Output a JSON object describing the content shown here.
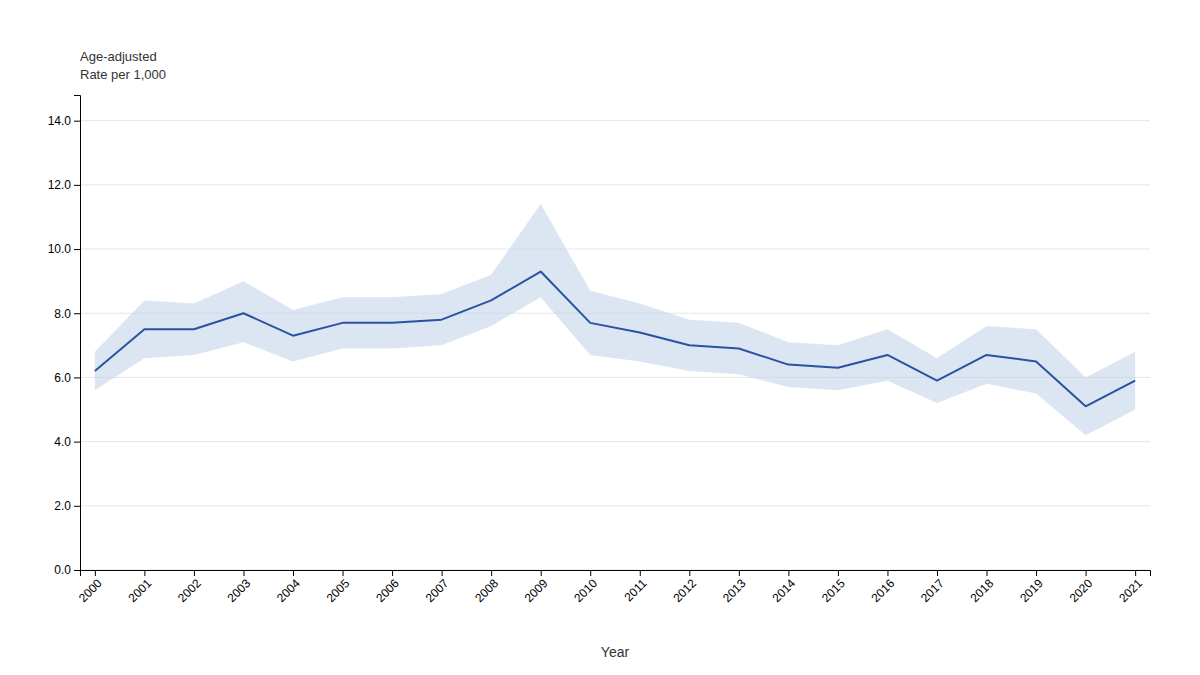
{
  "chart_data": {
    "type": "line",
    "xlabel": "Year",
    "ylabel": [
      "Age-adjusted",
      "Rate per 1,000"
    ],
    "x": [
      2000,
      2001,
      2002,
      2003,
      2004,
      2005,
      2006,
      2007,
      2008,
      2009,
      2010,
      2011,
      2012,
      2013,
      2014,
      2015,
      2016,
      2017,
      2018,
      2019,
      2020,
      2021
    ],
    "values": [
      6.2,
      7.5,
      7.5,
      8.0,
      7.3,
      7.7,
      7.7,
      7.8,
      8.4,
      9.3,
      7.7,
      7.4,
      7.0,
      6.9,
      6.4,
      6.3,
      6.7,
      5.9,
      6.7,
      6.5,
      5.1,
      5.9
    ],
    "color": "#2a52a0",
    "band": {
      "lower": [
        5.6,
        6.6,
        6.7,
        7.1,
        6.5,
        6.9,
        6.9,
        7.0,
        7.6,
        8.5,
        6.7,
        6.5,
        6.2,
        6.1,
        5.7,
        5.6,
        5.9,
        5.2,
        5.8,
        5.5,
        4.2,
        5.0
      ],
      "upper": [
        6.8,
        8.4,
        8.3,
        9.0,
        8.1,
        8.5,
        8.5,
        8.6,
        9.2,
        11.4,
        8.7,
        8.3,
        7.8,
        7.7,
        7.1,
        7.0,
        7.5,
        6.6,
        7.6,
        7.5,
        6.0,
        6.8
      ],
      "color": "#c5d4ea"
    },
    "xlim": [
      1999.7,
      2021.3
    ],
    "xticks": [
      2000,
      2001,
      2002,
      2003,
      2004,
      2005,
      2006,
      2007,
      2008,
      2009,
      2010,
      2011,
      2012,
      2013,
      2014,
      2015,
      2016,
      2017,
      2018,
      2019,
      2020,
      2021
    ],
    "ylim": [
      0,
      14.8
    ],
    "yticks": [
      {
        "value": 0.0,
        "label": "0.0"
      },
      {
        "value": 2.0,
        "label": "2.0"
      },
      {
        "value": 4.0,
        "label": "4.0"
      },
      {
        "value": 6.0,
        "label": "6.0"
      },
      {
        "value": 8.0,
        "label": "8.0"
      },
      {
        "value": 10.0,
        "label": "10.0"
      },
      {
        "value": 12.0,
        "label": "12.0"
      },
      {
        "value": 14.0,
        "label": "14.0"
      }
    ],
    "grid": true
  }
}
